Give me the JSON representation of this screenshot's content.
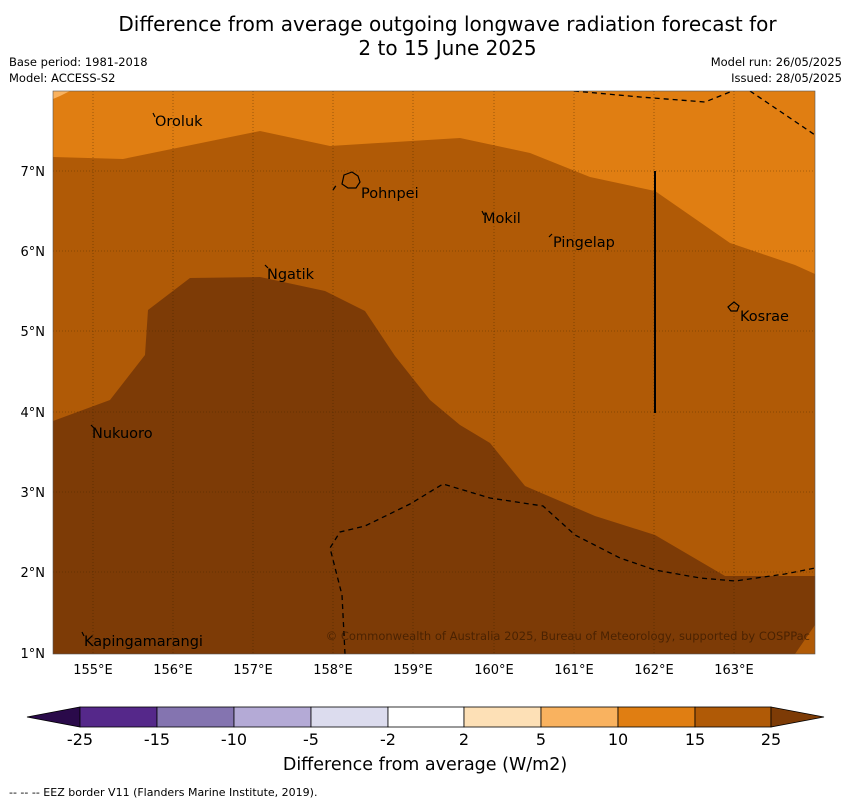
{
  "header": {
    "title_line1": "Difference from average outgoing longwave radiation forecast for",
    "title_line2": "2 to 15 June 2025",
    "base_period": "Base period: 1981-2018",
    "model": "Model: ACCESS-S2",
    "model_run": "Model run: 26/05/2025",
    "issued": "Issued: 28/05/2025"
  },
  "map": {
    "lon_labels": [
      "155°E",
      "156°E",
      "157°E",
      "158°E",
      "159°E",
      "160°E",
      "161°E",
      "162°E",
      "163°E"
    ],
    "lat_labels": [
      "7°N",
      "6°N",
      "5°N",
      "4°N",
      "3°N",
      "2°N",
      "1°N"
    ],
    "places": [
      "Oroluk",
      "Pohnpei",
      "Mokil",
      "Pingelap",
      "Ngatik",
      "Kosrae",
      "Nukuoro",
      "Kapingamarangi"
    ],
    "copyright": "© Commonwealth of Australia 2025, Bureau of Meteorology, supported by COSPPac"
  },
  "colorbar": {
    "ticks": [
      "-25",
      "-15",
      "-10",
      "-5",
      "-2",
      "2",
      "5",
      "10",
      "15",
      "25"
    ],
    "colors": [
      "#2a0a4a",
      "#55288a",
      "#8474b0",
      "#b4aad6",
      "#dcdcee",
      "#ffffff",
      "#fde0b6",
      "#f9b25f",
      "#e07e12",
      "#b05a06",
      "#7d3b06"
    ],
    "label": "Difference from average (W/m2)"
  },
  "colors": {
    "band_10_15": "#e07e12",
    "band_5_10": "#f9b25f",
    "band_15_25": "#b05a06",
    "band_25_plus": "#7d3b06"
  },
  "footnote": "--  --  -- EEZ border V11 (Flanders Marine Institute, 2019)."
}
